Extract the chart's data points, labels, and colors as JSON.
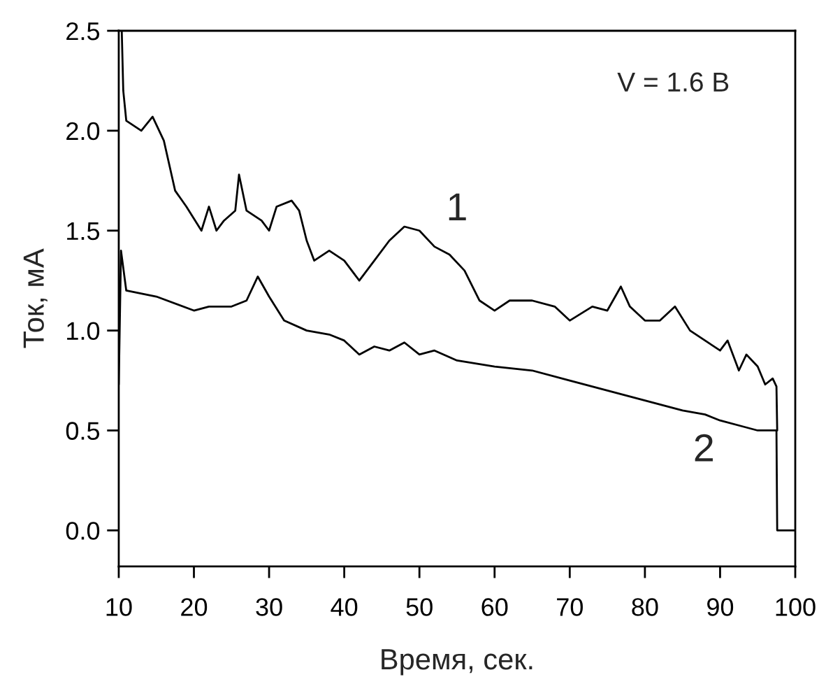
{
  "chart_data": {
    "type": "line",
    "xlabel": "Время, сек.",
    "ylabel": "Ток, мА",
    "xlim": [
      10,
      100
    ],
    "ylim": [
      -0.18,
      2.5
    ],
    "xticks": [
      10,
      20,
      30,
      40,
      50,
      60,
      70,
      80,
      90,
      100
    ],
    "yticks": [
      {
        "value": 0,
        "label": "0.0"
      },
      {
        "value": 0.5,
        "label": "0.5"
      },
      {
        "value": 1,
        "label": "1.0"
      },
      {
        "value": 1.5,
        "label": "1.5"
      },
      {
        "value": 2,
        "label": "2.0"
      },
      {
        "value": 2.5,
        "label": "2.5"
      }
    ],
    "grid": false,
    "line_style": "solid",
    "marker": "none",
    "series": [
      {
        "color": "#000000",
        "x": [
          10.4,
          10.6,
          11,
          13,
          14.5,
          16,
          17.5,
          19,
          21,
          22,
          23,
          24,
          25.5,
          26,
          27,
          29,
          30,
          31,
          33,
          34,
          35,
          36,
          38,
          40,
          42,
          44,
          46,
          48,
          50,
          52,
          54,
          56,
          58,
          60,
          62,
          65,
          68,
          70,
          73,
          75,
          76.8,
          78,
          80,
          82,
          84,
          86,
          88,
          90,
          91,
          92.5,
          93.5,
          95,
          96,
          97,
          97.5,
          97.6
        ],
        "values": [
          2.5,
          2.2,
          2.05,
          2.0,
          2.07,
          1.95,
          1.7,
          1.62,
          1.5,
          1.62,
          1.5,
          1.55,
          1.6,
          1.78,
          1.6,
          1.55,
          1.5,
          1.62,
          1.65,
          1.6,
          1.45,
          1.35,
          1.4,
          1.35,
          1.25,
          1.35,
          1.45,
          1.52,
          1.5,
          1.42,
          1.38,
          1.3,
          1.15,
          1.1,
          1.15,
          1.15,
          1.12,
          1.05,
          1.12,
          1.1,
          1.22,
          1.12,
          1.05,
          1.05,
          1.12,
          1.0,
          0.95,
          0.9,
          0.95,
          0.8,
          0.88,
          0.82,
          0.73,
          0.76,
          0.72,
          0.5
        ]
      },
      {
        "color": "#000000",
        "x": [
          10,
          10.3,
          11,
          15,
          20,
          22,
          25,
          27,
          28.5,
          30,
          32,
          35,
          38,
          40,
          42,
          44,
          46,
          48,
          50,
          52,
          55,
          60,
          65,
          70,
          75,
          80,
          85,
          88,
          90,
          93,
          95,
          97.5,
          97.6,
          100
        ],
        "values": [
          0.73,
          1.4,
          1.2,
          1.17,
          1.1,
          1.12,
          1.12,
          1.15,
          1.27,
          1.17,
          1.05,
          1.0,
          0.98,
          0.95,
          0.88,
          0.92,
          0.9,
          0.94,
          0.88,
          0.9,
          0.85,
          0.82,
          0.8,
          0.75,
          0.7,
          0.65,
          0.6,
          0.58,
          0.55,
          0.52,
          0.5,
          0.5,
          0.0,
          0.0
        ]
      }
    ],
    "annotations": [
      "1",
      "2",
      "V = 1.6 В"
    ]
  }
}
